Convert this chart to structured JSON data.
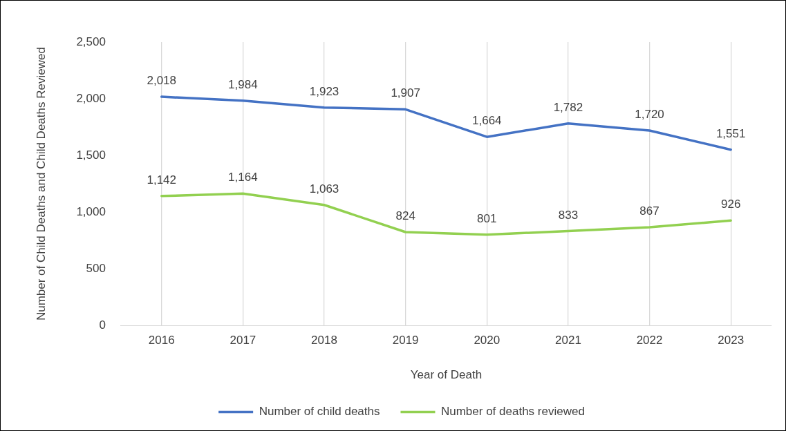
{
  "chart_data": {
    "type": "line",
    "xlabel": "Year of Death",
    "ylabel": "Number of Child Deaths and Child Deaths Reviewed",
    "categories": [
      "2016",
      "2017",
      "2018",
      "2019",
      "2020",
      "2021",
      "2022",
      "2023"
    ],
    "series": [
      {
        "name": "Number of child deaths",
        "color": "#4472c4",
        "values": [
          2018,
          1984,
          1923,
          1907,
          1664,
          1782,
          1720,
          1551
        ],
        "value_labels": [
          "2,018",
          "1,984",
          "1,923",
          "1,907",
          "1,664",
          "1,782",
          "1,720",
          "1,551"
        ]
      },
      {
        "name": "Number of deaths reviewed",
        "color": "#92d050",
        "values": [
          1142,
          1164,
          1063,
          824,
          801,
          833,
          867,
          926
        ],
        "value_labels": [
          "1,142",
          "1,164",
          "1,063",
          "824",
          "801",
          "833",
          "867",
          "926"
        ]
      }
    ],
    "ylim": [
      0,
      2500
    ],
    "yticks": [
      {
        "value": 0,
        "label": "0"
      },
      {
        "value": 500,
        "label": "500"
      },
      {
        "value": 1000,
        "label": "1,000"
      },
      {
        "value": 1500,
        "label": "1,500"
      },
      {
        "value": 2000,
        "label": "2,000"
      },
      {
        "value": 2500,
        "label": "2,500"
      }
    ],
    "grid": "x",
    "legend": "bottom",
    "marker": "none",
    "line_style": "solid"
  }
}
